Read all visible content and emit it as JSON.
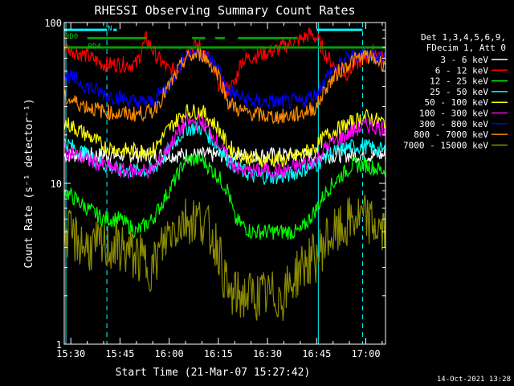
{
  "chart_data": {
    "type": "line",
    "title": "RHESSI Observing Summary Count Rates",
    "ylabel": "Count Rate (s⁻¹ detector⁻¹)",
    "xlabel": "Start Time (21-Mar-07 15:27:42)",
    "yscale": "log",
    "ylim": [
      1,
      100
    ],
    "xlim_minutes": [
      -2,
      96
    ],
    "x_ticks": [
      {
        "label": "15:30",
        "t": 0
      },
      {
        "label": "15:45",
        "t": 15
      },
      {
        "label": "16:00",
        "t": 30
      },
      {
        "label": "16:15",
        "t": 45
      },
      {
        "label": "16:30",
        "t": 60
      },
      {
        "label": "16:45",
        "t": 75
      },
      {
        "label": "17:00",
        "t": 90
      }
    ],
    "y_ticks": [
      {
        "label": "1",
        "v": 1
      },
      {
        "label": "10",
        "v": 10
      },
      {
        "label": "100",
        "v": 100
      }
    ],
    "legend_header": [
      "Det 1,3,4,5,6,9,",
      "FDecim 1, Att 0"
    ],
    "legend_placement": "right",
    "series": [
      {
        "name": "3 - 6 keV",
        "color": "#ffffff",
        "points": [
          [
            -2,
            15
          ],
          [
            10,
            15
          ],
          [
            20,
            15
          ],
          [
            30,
            15
          ],
          [
            40,
            15
          ],
          [
            50,
            15
          ],
          [
            60,
            15
          ],
          [
            70,
            15
          ],
          [
            80,
            15
          ],
          [
            90,
            15
          ],
          [
            95,
            15
          ]
        ]
      },
      {
        "name": "6 - 12 keV",
        "color": "#ff0000",
        "points": [
          [
            -2,
            70
          ],
          [
            5,
            62
          ],
          [
            10,
            55
          ],
          [
            15,
            55
          ],
          [
            20,
            55
          ],
          [
            23,
            80
          ],
          [
            26,
            62
          ],
          [
            30,
            50
          ],
          [
            33,
            52
          ],
          [
            36,
            70
          ],
          [
            39,
            72
          ],
          [
            42,
            60
          ],
          [
            45,
            42
          ],
          [
            48,
            38
          ],
          [
            50,
            42
          ],
          [
            52,
            58
          ],
          [
            54,
            60
          ],
          [
            57,
            63
          ],
          [
            60,
            65
          ],
          [
            63,
            68
          ],
          [
            66,
            73
          ],
          [
            70,
            78
          ],
          [
            73,
            85
          ],
          [
            75,
            80
          ],
          [
            78,
            62
          ],
          [
            81,
            52
          ],
          [
            84,
            48
          ],
          [
            87,
            55
          ],
          [
            90,
            62
          ],
          [
            93,
            66
          ],
          [
            95,
            60
          ]
        ]
      },
      {
        "name": "12 - 25 keV",
        "color": "#00ff00",
        "points": [
          [
            -2,
            9
          ],
          [
            5,
            7
          ],
          [
            10,
            6
          ],
          [
            15,
            6
          ],
          [
            20,
            5
          ],
          [
            25,
            6
          ],
          [
            30,
            9
          ],
          [
            35,
            14
          ],
          [
            40,
            14
          ],
          [
            45,
            11
          ],
          [
            48,
            9
          ],
          [
            50,
            6
          ],
          [
            55,
            5
          ],
          [
            60,
            5
          ],
          [
            65,
            5
          ],
          [
            70,
            5
          ],
          [
            75,
            7
          ],
          [
            78,
            9
          ],
          [
            82,
            11
          ],
          [
            86,
            13
          ],
          [
            90,
            13
          ],
          [
            95,
            12
          ]
        ]
      },
      {
        "name": "25 - 50 keV",
        "color": "#00ffff",
        "points": [
          [
            -2,
            18
          ],
          [
            5,
            15
          ],
          [
            10,
            13
          ],
          [
            15,
            12
          ],
          [
            20,
            12
          ],
          [
            25,
            12
          ],
          [
            30,
            16
          ],
          [
            35,
            22
          ],
          [
            40,
            22
          ],
          [
            45,
            17
          ],
          [
            48,
            14
          ],
          [
            52,
            12
          ],
          [
            56,
            11
          ],
          [
            60,
            11
          ],
          [
            65,
            11
          ],
          [
            70,
            12
          ],
          [
            75,
            13
          ],
          [
            78,
            15
          ],
          [
            82,
            16
          ],
          [
            86,
            17
          ],
          [
            90,
            17
          ],
          [
            95,
            16
          ]
        ]
      },
      {
        "name": "50 - 100 keV",
        "color": "#ffff00",
        "points": [
          [
            -2,
            24
          ],
          [
            5,
            20
          ],
          [
            10,
            17
          ],
          [
            15,
            16
          ],
          [
            20,
            16
          ],
          [
            25,
            16
          ],
          [
            30,
            22
          ],
          [
            35,
            28
          ],
          [
            40,
            28
          ],
          [
            45,
            22
          ],
          [
            48,
            17
          ],
          [
            52,
            15
          ],
          [
            56,
            14
          ],
          [
            60,
            14
          ],
          [
            65,
            14
          ],
          [
            70,
            15
          ],
          [
            75,
            17
          ],
          [
            78,
            20
          ],
          [
            82,
            22
          ],
          [
            86,
            24
          ],
          [
            90,
            26
          ],
          [
            95,
            24
          ]
        ]
      },
      {
        "name": "100 - 300 keV",
        "color": "#ff00ff",
        "points": [
          [
            -2,
            16
          ],
          [
            5,
            14
          ],
          [
            10,
            13
          ],
          [
            15,
            12
          ],
          [
            20,
            12
          ],
          [
            25,
            12
          ],
          [
            30,
            17
          ],
          [
            35,
            24
          ],
          [
            40,
            24
          ],
          [
            45,
            18
          ],
          [
            48,
            14
          ],
          [
            52,
            12
          ],
          [
            56,
            12
          ],
          [
            60,
            12
          ],
          [
            65,
            12
          ],
          [
            70,
            13
          ],
          [
            75,
            14
          ],
          [
            78,
            17
          ],
          [
            82,
            19
          ],
          [
            86,
            21
          ],
          [
            90,
            23
          ],
          [
            95,
            22
          ]
        ]
      },
      {
        "name": "300 - 800 keV",
        "color": "#0000ff",
        "points": [
          [
            -2,
            48
          ],
          [
            5,
            40
          ],
          [
            10,
            36
          ],
          [
            15,
            34
          ],
          [
            20,
            32
          ],
          [
            25,
            32
          ],
          [
            30,
            42
          ],
          [
            35,
            62
          ],
          [
            40,
            66
          ],
          [
            45,
            52
          ],
          [
            48,
            38
          ],
          [
            52,
            34
          ],
          [
            56,
            32
          ],
          [
            60,
            32
          ],
          [
            65,
            32
          ],
          [
            70,
            32
          ],
          [
            75,
            36
          ],
          [
            78,
            46
          ],
          [
            82,
            55
          ],
          [
            86,
            62
          ],
          [
            90,
            66
          ],
          [
            95,
            60
          ]
        ]
      },
      {
        "name": "800 - 7000 keV",
        "color": "#ff8c00",
        "points": [
          [
            -2,
            34
          ],
          [
            5,
            30
          ],
          [
            10,
            28
          ],
          [
            15,
            27
          ],
          [
            20,
            27
          ],
          [
            25,
            28
          ],
          [
            30,
            40
          ],
          [
            35,
            60
          ],
          [
            40,
            64
          ],
          [
            45,
            48
          ],
          [
            48,
            32
          ],
          [
            52,
            28
          ],
          [
            56,
            27
          ],
          [
            60,
            26
          ],
          [
            65,
            26
          ],
          [
            70,
            27
          ],
          [
            75,
            30
          ],
          [
            78,
            40
          ],
          [
            82,
            50
          ],
          [
            86,
            58
          ],
          [
            90,
            62
          ],
          [
            95,
            56
          ]
        ]
      },
      {
        "name": "7000 - 15000 keV",
        "color": "#8b8b00",
        "points": [
          [
            -2,
            5
          ],
          [
            5,
            4
          ],
          [
            10,
            4
          ],
          [
            15,
            4
          ],
          [
            20,
            3.5
          ],
          [
            25,
            3
          ],
          [
            30,
            5
          ],
          [
            35,
            6
          ],
          [
            40,
            6
          ],
          [
            45,
            4
          ],
          [
            48,
            2
          ],
          [
            52,
            2
          ],
          [
            56,
            2
          ],
          [
            60,
            2
          ],
          [
            65,
            2
          ],
          [
            70,
            3
          ],
          [
            75,
            3.5
          ],
          [
            78,
            4.5
          ],
          [
            82,
            5
          ],
          [
            86,
            6
          ],
          [
            90,
            6
          ],
          [
            95,
            5
          ]
        ]
      }
    ],
    "annotations": [
      {
        "label": "RD0",
        "t": -2,
        "v": 82,
        "color": "#00cc00"
      },
      {
        "label": "RD4",
        "t": 5,
        "v": 71,
        "color": "#00cc00"
      },
      {
        "label": "N",
        "t": 11,
        "v": 92,
        "color": "#00ffff"
      }
    ],
    "status_bars": [
      {
        "name": "RD4 band",
        "color": "#00a000",
        "v": 70,
        "segments": [
          [
            -2,
            96
          ]
        ]
      },
      {
        "name": "RD0 band",
        "color": "#00a000",
        "v": 80,
        "segments": [
          [
            5,
            23
          ],
          [
            37,
            41
          ],
          [
            44,
            47
          ],
          [
            51,
            69
          ]
        ]
      },
      {
        "name": "N band",
        "color": "#00ffff",
        "v": 90,
        "segments": [
          [
            -2,
            11
          ],
          [
            13,
            14
          ],
          [
            75,
            89
          ]
        ]
      }
    ],
    "vlines": [
      {
        "t": -1.5,
        "style": "solid",
        "color": "#00ffff"
      },
      {
        "t": 11,
        "style": "dashed",
        "color": "#00ffff"
      },
      {
        "t": 75.5,
        "style": "solid",
        "color": "#00ffff"
      },
      {
        "t": 89,
        "style": "dashed",
        "color": "#00ffff"
      }
    ],
    "footer_timestamp": "14-Oct-2021 13:28"
  }
}
